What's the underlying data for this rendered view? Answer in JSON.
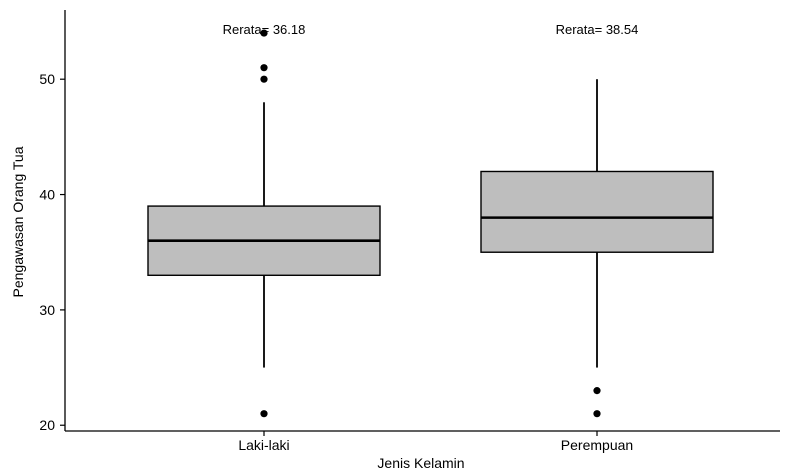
{
  "chart_data": {
    "type": "box",
    "xlabel": "Jenis Kelamin",
    "ylabel": "Pengawasan Orang Tua",
    "ylim": [
      19.5,
      56
    ],
    "yticks": [
      20,
      30,
      40,
      50
    ],
    "grid": false,
    "categories": [
      "Laki-laki",
      "Perempuan"
    ],
    "boxes": [
      {
        "category": "Laki-laki",
        "whisker_low": 25,
        "q1": 33,
        "median": 36,
        "q3": 39,
        "whisker_high": 48,
        "outliers": [
          21,
          50,
          51,
          54
        ],
        "annotation": "Rerata= 36.18"
      },
      {
        "category": "Perempuan",
        "whisker_low": 25,
        "q1": 35,
        "median": 38,
        "q3": 42,
        "whisker_high": 50,
        "outliers": [
          21,
          23
        ],
        "annotation": "Rerata= 38.54"
      }
    ],
    "colors": {
      "box_fill": "#bebebe",
      "stroke": "#000000"
    }
  }
}
